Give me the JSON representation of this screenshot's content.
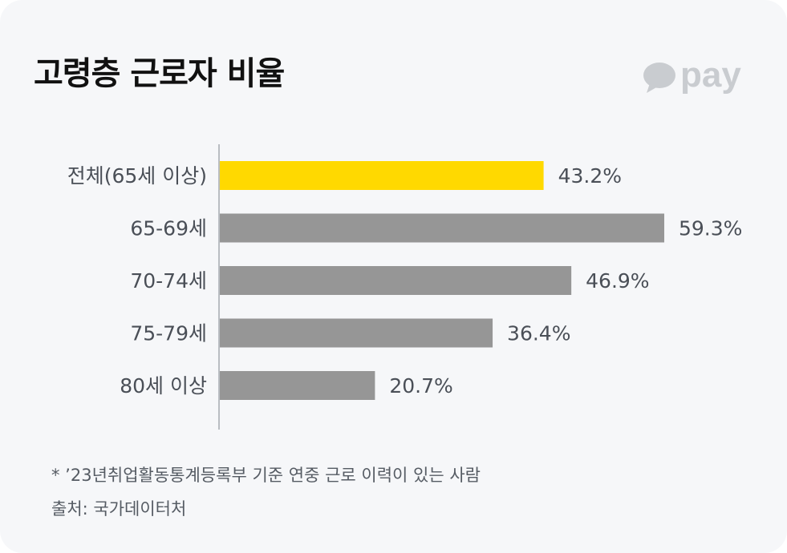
{
  "header": {
    "title": "고령층 근로자 비율",
    "brand_text": "pay",
    "brand_icon": "speech-bubble-icon"
  },
  "colors": {
    "highlight": "#ffd900",
    "bar": "#969696",
    "axis": "#b9bdc2",
    "label": "#4a4f57",
    "background": "#f6f7f9"
  },
  "chart_data": {
    "type": "bar",
    "orientation": "horizontal",
    "title": "고령층 근로자 비율",
    "xlabel": "",
    "ylabel": "",
    "unit": "%",
    "xlim": [
      0,
      59.3
    ],
    "grid": false,
    "legend": "none",
    "categories": [
      "전체(65세 이상)",
      "65-69세",
      "70-74세",
      "75-79세",
      "80세 이상"
    ],
    "values": [
      43.2,
      59.3,
      46.9,
      36.4,
      20.7
    ],
    "value_labels": [
      "43.2%",
      "59.3%",
      "46.9%",
      "36.4%",
      "20.7%"
    ],
    "highlight_index": 0
  },
  "notes": {
    "footnote": "* ’23년취업활동통계등록부 기준 연중 근로 이력이 있는 사람",
    "source": "출처: 국가데이터처"
  }
}
